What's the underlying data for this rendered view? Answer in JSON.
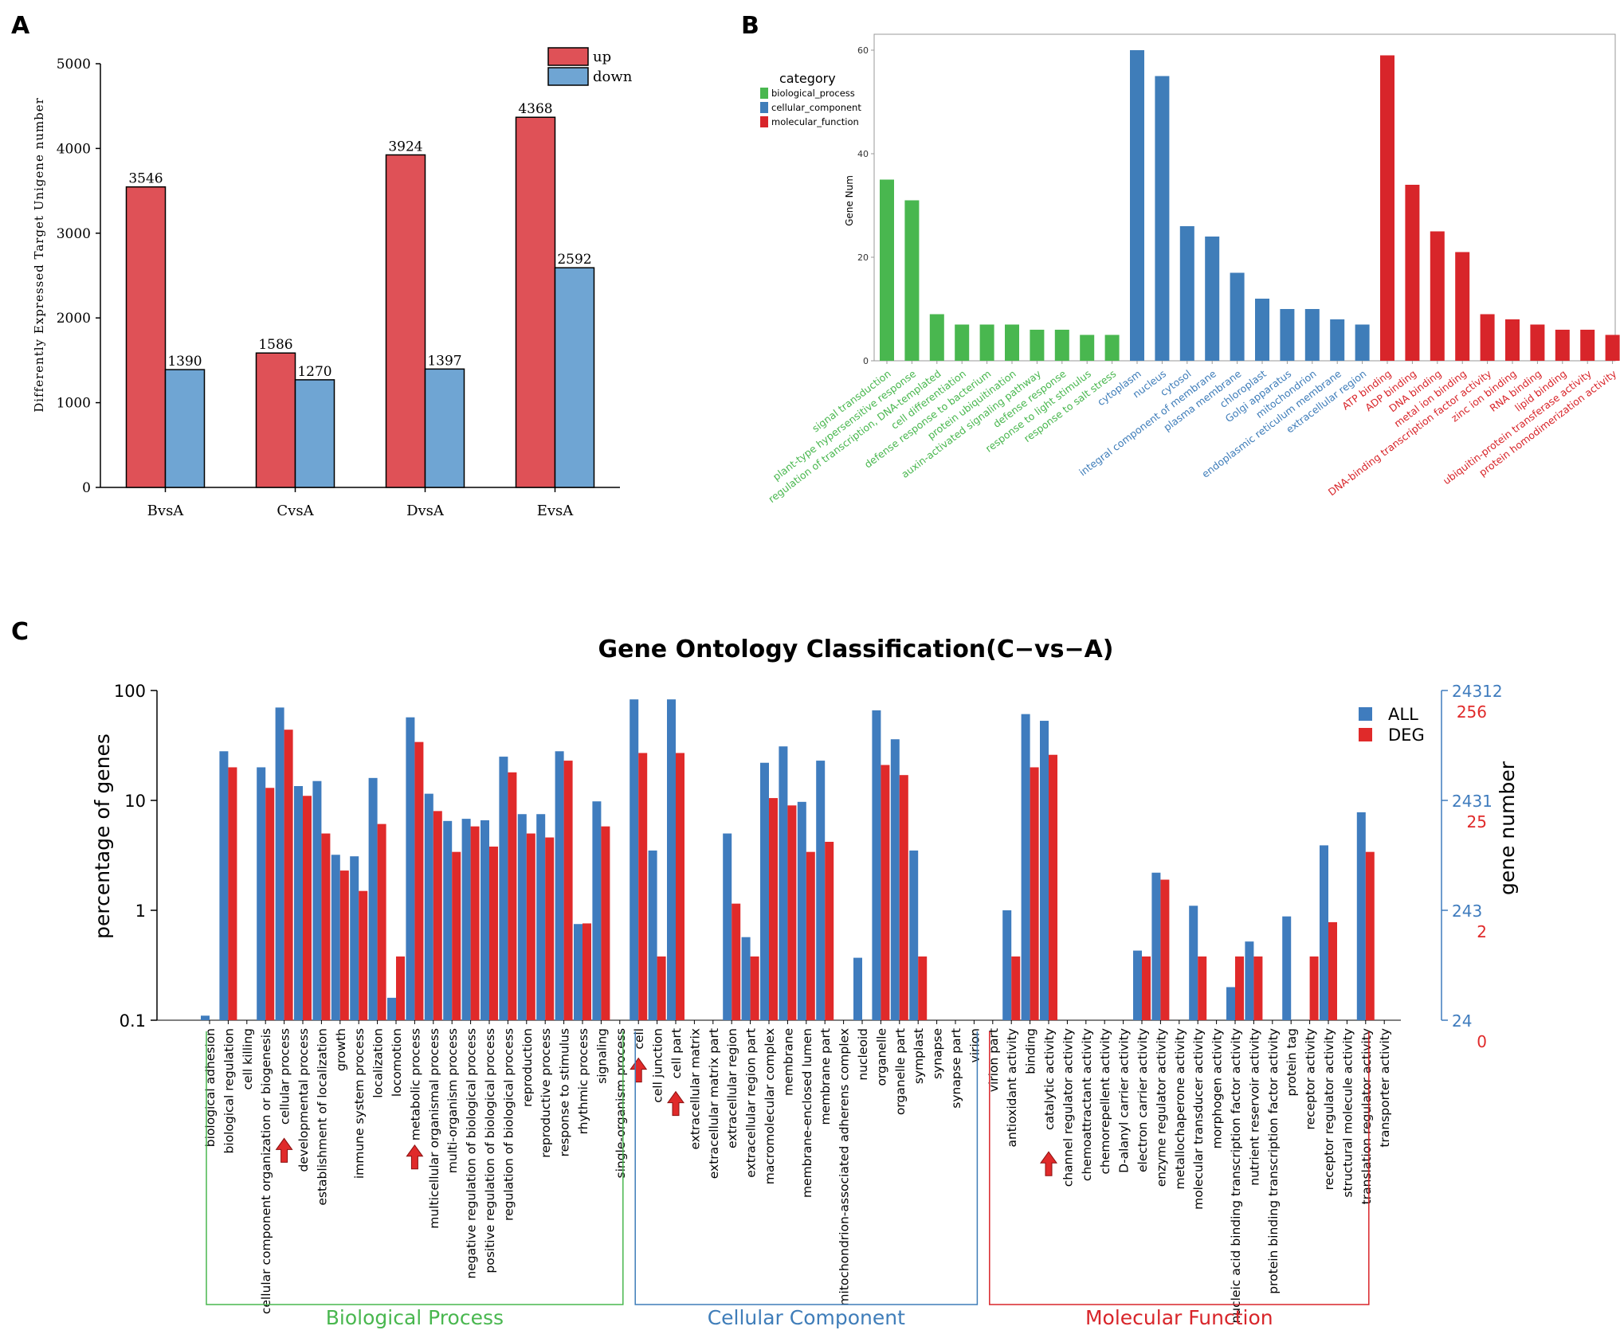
{
  "panel_labels": {
    "a": "A",
    "b": "B",
    "c": "C"
  },
  "colors": {
    "up": "#df5157",
    "down": "#6fa5d3",
    "bp": "#49b74f",
    "cc": "#3f7db9",
    "mf": "#d8252a",
    "all": "#3f7cbe",
    "deg": "#e02a2a"
  },
  "chart_data": [
    {
      "id": "A",
      "type": "bar",
      "ylabel": "Differently Expressed Target Unigene number",
      "ylim": [
        0,
        5000
      ],
      "yticks": [
        0,
        1000,
        2000,
        3000,
        4000,
        5000
      ],
      "categories": [
        "BvsA",
        "CvsA",
        "DvsA",
        "EvsA"
      ],
      "series": [
        {
          "name": "up",
          "values": [
            3546,
            1586,
            3924,
            4368
          ]
        },
        {
          "name": "down",
          "values": [
            1390,
            1270,
            1397,
            2592
          ]
        }
      ],
      "legend": [
        "up",
        "down"
      ]
    },
    {
      "id": "B",
      "type": "bar",
      "ylabel": "Gene Num",
      "ylim": [
        0,
        60
      ],
      "yticks": [
        0,
        20,
        40,
        60
      ],
      "legend_title": "category",
      "legend": [
        "biological_process",
        "cellular_component",
        "molecular_function"
      ],
      "categories": [
        {
          "name": "signal transduction",
          "cat": "bp",
          "value": 35
        },
        {
          "name": "plant-type hypersensitive response",
          "cat": "bp",
          "value": 31
        },
        {
          "name": "regulation of transcription, DNA-templated",
          "cat": "bp",
          "value": 9
        },
        {
          "name": "cell differentiation",
          "cat": "bp",
          "value": 7
        },
        {
          "name": "defense response to bacterium",
          "cat": "bp",
          "value": 7
        },
        {
          "name": "protein ubiquitination",
          "cat": "bp",
          "value": 7
        },
        {
          "name": "auxin-activated signaling pathway",
          "cat": "bp",
          "value": 6
        },
        {
          "name": "defense response",
          "cat": "bp",
          "value": 6
        },
        {
          "name": "response to light stimulus",
          "cat": "bp",
          "value": 5
        },
        {
          "name": "response to salt stress",
          "cat": "bp",
          "value": 5
        },
        {
          "name": "cytoplasm",
          "cat": "cc",
          "value": 60
        },
        {
          "name": "nucleus",
          "cat": "cc",
          "value": 55
        },
        {
          "name": "cytosol",
          "cat": "cc",
          "value": 26
        },
        {
          "name": "integral component of membrane",
          "cat": "cc",
          "value": 24
        },
        {
          "name": "plasma membrane",
          "cat": "cc",
          "value": 17
        },
        {
          "name": "chloroplast",
          "cat": "cc",
          "value": 12
        },
        {
          "name": "Golgi apparatus",
          "cat": "cc",
          "value": 10
        },
        {
          "name": "mitochondrion",
          "cat": "cc",
          "value": 10
        },
        {
          "name": "endoplasmic reticulum membrane",
          "cat": "cc",
          "value": 8
        },
        {
          "name": "extracellular region",
          "cat": "cc",
          "value": 7
        },
        {
          "name": "ATP binding",
          "cat": "mf",
          "value": 59
        },
        {
          "name": "ADP binding",
          "cat": "mf",
          "value": 34
        },
        {
          "name": "DNA binding",
          "cat": "mf",
          "value": 25
        },
        {
          "name": "metal ion binding",
          "cat": "mf",
          "value": 21
        },
        {
          "name": "DNA-binding transcription factor activity",
          "cat": "mf",
          "value": 9
        },
        {
          "name": "zinc ion binding",
          "cat": "mf",
          "value": 8
        },
        {
          "name": "RNA binding",
          "cat": "mf",
          "value": 7
        },
        {
          "name": "lipid binding",
          "cat": "mf",
          "value": 6
        },
        {
          "name": "ubiquitin-protein transferase activity",
          "cat": "mf",
          "value": 6
        },
        {
          "name": "protein homodimerization activity",
          "cat": "mf",
          "value": 5
        }
      ]
    },
    {
      "id": "C",
      "type": "bar",
      "title": "Gene Ontology Classification(C−vs−A)",
      "ylabel": "percentage of genes",
      "y2label": "gene number",
      "yscale": "log",
      "ylim": [
        0.1,
        100
      ],
      "yticks": [
        "0.1",
        "1",
        "10",
        "100"
      ],
      "y2ticks_all": [
        "24",
        "243",
        "2431",
        "24312"
      ],
      "y2ticks_deg": [
        "0",
        "2",
        "25",
        "256"
      ],
      "legend": [
        "ALL",
        "DEG"
      ],
      "groups": [
        {
          "name": "Biological Process",
          "cat": "bp",
          "start": 0,
          "end": 22
        },
        {
          "name": "Cellular Component",
          "cat": "cc",
          "start": 23,
          "end": 41
        },
        {
          "name": "Molecular Function",
          "cat": "mf",
          "start": 42,
          "end": 62
        }
      ],
      "highlighted": [
        "cellular process",
        "metabolic process",
        "cell",
        "cell part",
        "catalytic activity"
      ],
      "categories": [
        {
          "name": "biological adhesion",
          "all": 0.11,
          "deg": null
        },
        {
          "name": "biological regulation",
          "all": 28,
          "deg": 20
        },
        {
          "name": "cell killing",
          "all": null,
          "deg": null
        },
        {
          "name": "cellular component organization or biogenesis",
          "all": 20,
          "deg": 13
        },
        {
          "name": "cellular process",
          "all": 70,
          "deg": 44
        },
        {
          "name": "developmental process",
          "all": 13.5,
          "deg": 11
        },
        {
          "name": "establishment of localization",
          "all": 15,
          "deg": 5
        },
        {
          "name": "growth",
          "all": 3.2,
          "deg": 2.3
        },
        {
          "name": "immune system process",
          "all": 3.1,
          "deg": 1.5
        },
        {
          "name": "localization",
          "all": 16,
          "deg": 6.1
        },
        {
          "name": "locomotion",
          "all": 0.16,
          "deg": 0.38
        },
        {
          "name": "metabolic process",
          "all": 57,
          "deg": 34
        },
        {
          "name": "multicellular organismal process",
          "all": 11.5,
          "deg": 8
        },
        {
          "name": "multi-organism process",
          "all": 6.5,
          "deg": 3.4
        },
        {
          "name": "negative regulation of biological process",
          "all": 6.8,
          "deg": 5.8
        },
        {
          "name": "positive regulation of biological process",
          "all": 6.6,
          "deg": 3.8
        },
        {
          "name": "regulation of biological process",
          "all": 25,
          "deg": 18
        },
        {
          "name": "reproduction",
          "all": 7.5,
          "deg": 5
        },
        {
          "name": "reproductive process",
          "all": 7.5,
          "deg": 4.6
        },
        {
          "name": "response to stimulus",
          "all": 28,
          "deg": 23
        },
        {
          "name": "rhythmic process",
          "all": 0.75,
          "deg": 0.76
        },
        {
          "name": "signaling",
          "all": 9.8,
          "deg": 5.8
        },
        {
          "name": "single-organism process",
          "all": null,
          "deg": null
        },
        {
          "name": "cell",
          "all": 83,
          "deg": 27
        },
        {
          "name": "cell junction",
          "all": 3.5,
          "deg": 0.38
        },
        {
          "name": "cell part",
          "all": 83,
          "deg": 27
        },
        {
          "name": "extracellular matrix",
          "all": null,
          "deg": null
        },
        {
          "name": "extracellular matrix part",
          "all": null,
          "deg": null
        },
        {
          "name": "extracellular region",
          "all": 5,
          "deg": 1.15
        },
        {
          "name": "extracellular region part",
          "all": 0.57,
          "deg": 0.38
        },
        {
          "name": "macromolecular complex",
          "all": 22,
          "deg": 10.5
        },
        {
          "name": "membrane",
          "all": 31,
          "deg": 9
        },
        {
          "name": "membrane-enclosed lumen",
          "all": 9.7,
          "deg": 3.4
        },
        {
          "name": "membrane part",
          "all": 23,
          "deg": 4.2
        },
        {
          "name": "mitochondrion-associated adherens complex",
          "all": null,
          "deg": null
        },
        {
          "name": "nucleoid",
          "all": 0.37,
          "deg": null
        },
        {
          "name": "organelle",
          "all": 66,
          "deg": 21
        },
        {
          "name": "organelle part",
          "all": 36,
          "deg": 17
        },
        {
          "name": "symplast",
          "all": 3.5,
          "deg": 0.38
        },
        {
          "name": "synapse",
          "all": null,
          "deg": null
        },
        {
          "name": "synapse part",
          "all": null,
          "deg": null
        },
        {
          "name": "virion",
          "all": null,
          "deg": null
        },
        {
          "name": "virion part",
          "all": null,
          "deg": null
        },
        {
          "name": "antioxidant activity",
          "all": 1.0,
          "deg": 0.38
        },
        {
          "name": "binding",
          "all": 61,
          "deg": 20
        },
        {
          "name": "catalytic activity",
          "all": 53,
          "deg": 26
        },
        {
          "name": "channel regulator activity",
          "all": null,
          "deg": null
        },
        {
          "name": "chemoattractant activity",
          "all": null,
          "deg": null
        },
        {
          "name": "chemorepellent activity",
          "all": null,
          "deg": null
        },
        {
          "name": "D-alanyl carrier activity",
          "all": null,
          "deg": null
        },
        {
          "name": "electron carrier activity",
          "all": 0.43,
          "deg": 0.38
        },
        {
          "name": "enzyme regulator activity",
          "all": 2.2,
          "deg": 1.9
        },
        {
          "name": "metallochaperone activity",
          "all": null,
          "deg": null
        },
        {
          "name": "molecular transducer activity",
          "all": 1.1,
          "deg": 0.38
        },
        {
          "name": "morphogen activity",
          "all": null,
          "deg": null
        },
        {
          "name": "nucleic acid binding transcription factor activity",
          "all": 0.2,
          "deg": 0.38
        },
        {
          "name": "nutrient reservoir activity",
          "all": 0.52,
          "deg": 0.38
        },
        {
          "name": "protein binding transcription factor activity",
          "all": null,
          "deg": null
        },
        {
          "name": "protein tag",
          "all": 0.88,
          "deg": null
        },
        {
          "name": "receptor activity",
          "all": null,
          "deg": 0.38
        },
        {
          "name": "receptor regulator activity",
          "all": 3.9,
          "deg": 0.78
        },
        {
          "name": "structural molecule activity",
          "all": null,
          "deg": null
        },
        {
          "name": "translation regulator activity",
          "all": 7.8,
          "deg": 3.4
        },
        {
          "name": "transporter activity",
          "all": null,
          "deg": null
        }
      ]
    }
  ]
}
